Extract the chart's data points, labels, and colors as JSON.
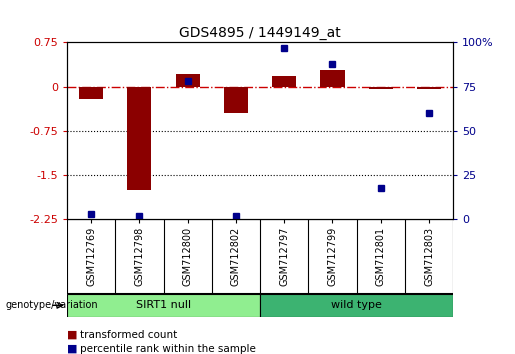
{
  "title": "GDS4895 / 1449149_at",
  "samples": [
    "GSM712769",
    "GSM712798",
    "GSM712800",
    "GSM712802",
    "GSM712797",
    "GSM712799",
    "GSM712801",
    "GSM712803"
  ],
  "transformed_counts": [
    -0.2,
    -1.75,
    0.22,
    -0.45,
    0.18,
    0.28,
    -0.04,
    -0.04
  ],
  "percentile_ranks": [
    3,
    2,
    78,
    2,
    97,
    88,
    18,
    60
  ],
  "groups": [
    {
      "label": "SIRT1 null",
      "color": "#90EE90",
      "start": 0,
      "end": 4
    },
    {
      "label": "wild type",
      "color": "#3CB371",
      "start": 4,
      "end": 8
    }
  ],
  "ylim_left": [
    -2.25,
    0.75
  ],
  "ylim_right": [
    0,
    100
  ],
  "yticks_left": [
    0.75,
    0,
    -0.75,
    -1.5,
    -2.25
  ],
  "yticks_right": [
    100,
    75,
    50,
    25,
    0
  ],
  "bar_color": "#8B0000",
  "dot_color": "#00008B",
  "zero_line_color": "#CC0000",
  "grid_line_color": "black",
  "bg_color": "#FFFFFF",
  "sample_bg_color": "#C8C8C8"
}
